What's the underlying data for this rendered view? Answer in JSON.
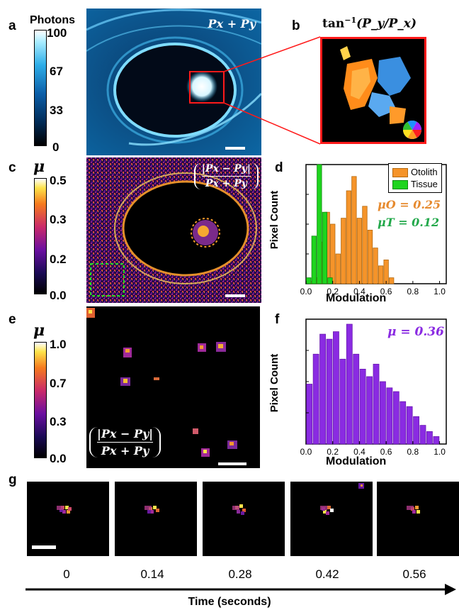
{
  "panel_labels": {
    "a": "a",
    "b": "b",
    "c": "c",
    "d": "d",
    "e": "e",
    "f": "f",
    "g": "g"
  },
  "panel_a": {
    "colorbar_title": "Photons",
    "ticks": [
      "100",
      "67",
      "33",
      "0"
    ],
    "overlay": "Px + Py"
  },
  "panel_b": {
    "title_func": "tan",
    "title_exp": "−1",
    "title_arg": "(P_y/P_x)"
  },
  "panel_c": {
    "colorbar_title": "μ",
    "ticks": [
      "0.5",
      "0.3",
      "0.2",
      "0.0"
    ],
    "overlay_num": "|Px − Py|",
    "overlay_den": "Px + Py"
  },
  "panel_d": {
    "ylabel": "Pixel Count",
    "xlabel": "Modulation",
    "xticks": [
      "0.0",
      "0.2",
      "0.4",
      "0.6",
      "0.8",
      "1.0"
    ],
    "legend": [
      "Otolith",
      "Tissue"
    ],
    "annot_o": "μO = 0.25",
    "annot_t": "μT = 0.12",
    "colors": {
      "otolith": "#f5942a",
      "tissue": "#1ed41e",
      "annot_o": "#e68a2e",
      "annot_t": "#22a84a"
    }
  },
  "panel_e": {
    "colorbar_title": "μ",
    "ticks": [
      "1.0",
      "0.7",
      "0.3",
      "0.0"
    ],
    "overlay_num": "|Px − Py|",
    "overlay_den": "Px + Py"
  },
  "panel_f": {
    "ylabel": "Pixel Count",
    "xlabel": "Modulation",
    "xticks": [
      "0.0",
      "0.2",
      "0.4",
      "0.6",
      "0.8",
      "1.0"
    ],
    "annot": "μ = 0.36",
    "colors": {
      "bar": "#8a2be2",
      "annot": "#8a2be2"
    }
  },
  "panel_g": {
    "time_labels": [
      "0",
      "0.14",
      "0.28",
      "0.42",
      "0.56"
    ],
    "axis_title": "Time (seconds)"
  },
  "chart_data": [
    {
      "type": "bar",
      "panel": "d",
      "xlabel": "Modulation",
      "ylabel": "Pixel Count",
      "xlim": [
        0,
        1.05
      ],
      "series": [
        {
          "name": "Otolith",
          "x": [
            0.04,
            0.08,
            0.12,
            0.16,
            0.2,
            0.24,
            0.28,
            0.32,
            0.36,
            0.4,
            0.44,
            0.48,
            0.52,
            0.56,
            0.6,
            0.64
          ],
          "values": [
            2,
            5,
            35,
            60,
            50,
            25,
            55,
            78,
            90,
            55,
            65,
            45,
            30,
            15,
            20,
            5
          ]
        },
        {
          "name": "Tissue",
          "x": [
            0.02,
            0.06,
            0.1,
            0.14,
            0.18
          ],
          "values": [
            5,
            40,
            100,
            60,
            5
          ]
        }
      ]
    },
    {
      "type": "bar",
      "panel": "f",
      "xlabel": "Modulation",
      "ylabel": "Pixel Count",
      "xlim": [
        0,
        1.05
      ],
      "series": [
        {
          "name": "",
          "x": [
            0.025,
            0.075,
            0.125,
            0.175,
            0.225,
            0.275,
            0.325,
            0.375,
            0.425,
            0.475,
            0.525,
            0.575,
            0.625,
            0.675,
            0.725,
            0.775,
            0.825,
            0.875,
            0.925,
            0.975
          ],
          "values": [
            48,
            72,
            88,
            84,
            90,
            68,
            96,
            72,
            60,
            54,
            64,
            50,
            45,
            42,
            34,
            30,
            22,
            15,
            10,
            6
          ]
        }
      ]
    }
  ]
}
